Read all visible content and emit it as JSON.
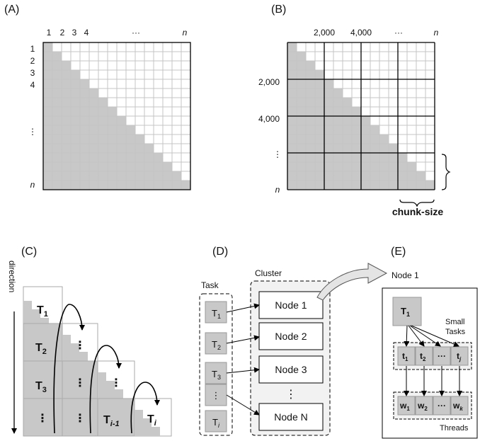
{
  "panels": {
    "a": "(A)",
    "b": "(B)",
    "c": "(C)",
    "d": "(D)",
    "e": "(E)"
  },
  "matrix_a": {
    "top_labels": [
      "1",
      "2",
      "3",
      "4"
    ],
    "side_labels": [
      "1",
      "2",
      "3",
      "4"
    ],
    "ellipsis_h": "···",
    "ellipsis_v": "⋮",
    "n_label": "n",
    "size": 16
  },
  "matrix_b": {
    "top_labels": [
      "2,000",
      "4,000"
    ],
    "side_labels": [
      "2,000",
      "4,000"
    ],
    "ellipsis_h": "···",
    "ellipsis_v": "⋮",
    "n_label": "n",
    "chunk_label": "chunk-size",
    "size": 16,
    "chunk_cells": 4
  },
  "panel_c": {
    "direction_label": "direction",
    "tasks": [
      {
        "main": "T",
        "sub": "1"
      },
      {
        "main": "T",
        "sub": "2"
      },
      {
        "main": "T",
        "sub": "3"
      },
      {
        "main": "T",
        "sub": "i-1"
      },
      {
        "main": "T",
        "sub": "i"
      }
    ],
    "ellipsis": "⋮"
  },
  "panel_d": {
    "task_title": "Task",
    "cluster_title": "Cluster",
    "tasks": [
      {
        "main": "T",
        "sub": "1"
      },
      {
        "main": "T",
        "sub": "2"
      },
      {
        "main": "T",
        "sub": "3"
      },
      {
        "main": "⋮",
        "sub": ""
      },
      {
        "main": "T",
        "sub": "i"
      }
    ],
    "nodes": [
      "Node 1",
      "Node 2",
      "Node 3",
      "Node N"
    ],
    "ellipsis": "⋮"
  },
  "panel_e": {
    "node_title": "Node 1",
    "root": {
      "main": "T",
      "sub": "1"
    },
    "small_tasks_label": [
      "Small",
      "Tasks"
    ],
    "small_tasks": [
      {
        "main": "t",
        "sub": "1"
      },
      {
        "main": "t",
        "sub": "2"
      },
      {
        "main": "···",
        "sub": ""
      },
      {
        "main": "t",
        "sub": "j"
      }
    ],
    "workers": [
      {
        "main": "w",
        "sub": "1"
      },
      {
        "main": "w",
        "sub": "2"
      },
      {
        "main": "···",
        "sub": ""
      },
      {
        "main": "w",
        "sub": "k"
      }
    ],
    "threads_label": "Threads"
  },
  "colors": {
    "fill": "#c8c8c8",
    "stroke": "#9a9a9a",
    "grid": "#c4c4c4",
    "dark": "#000000"
  }
}
